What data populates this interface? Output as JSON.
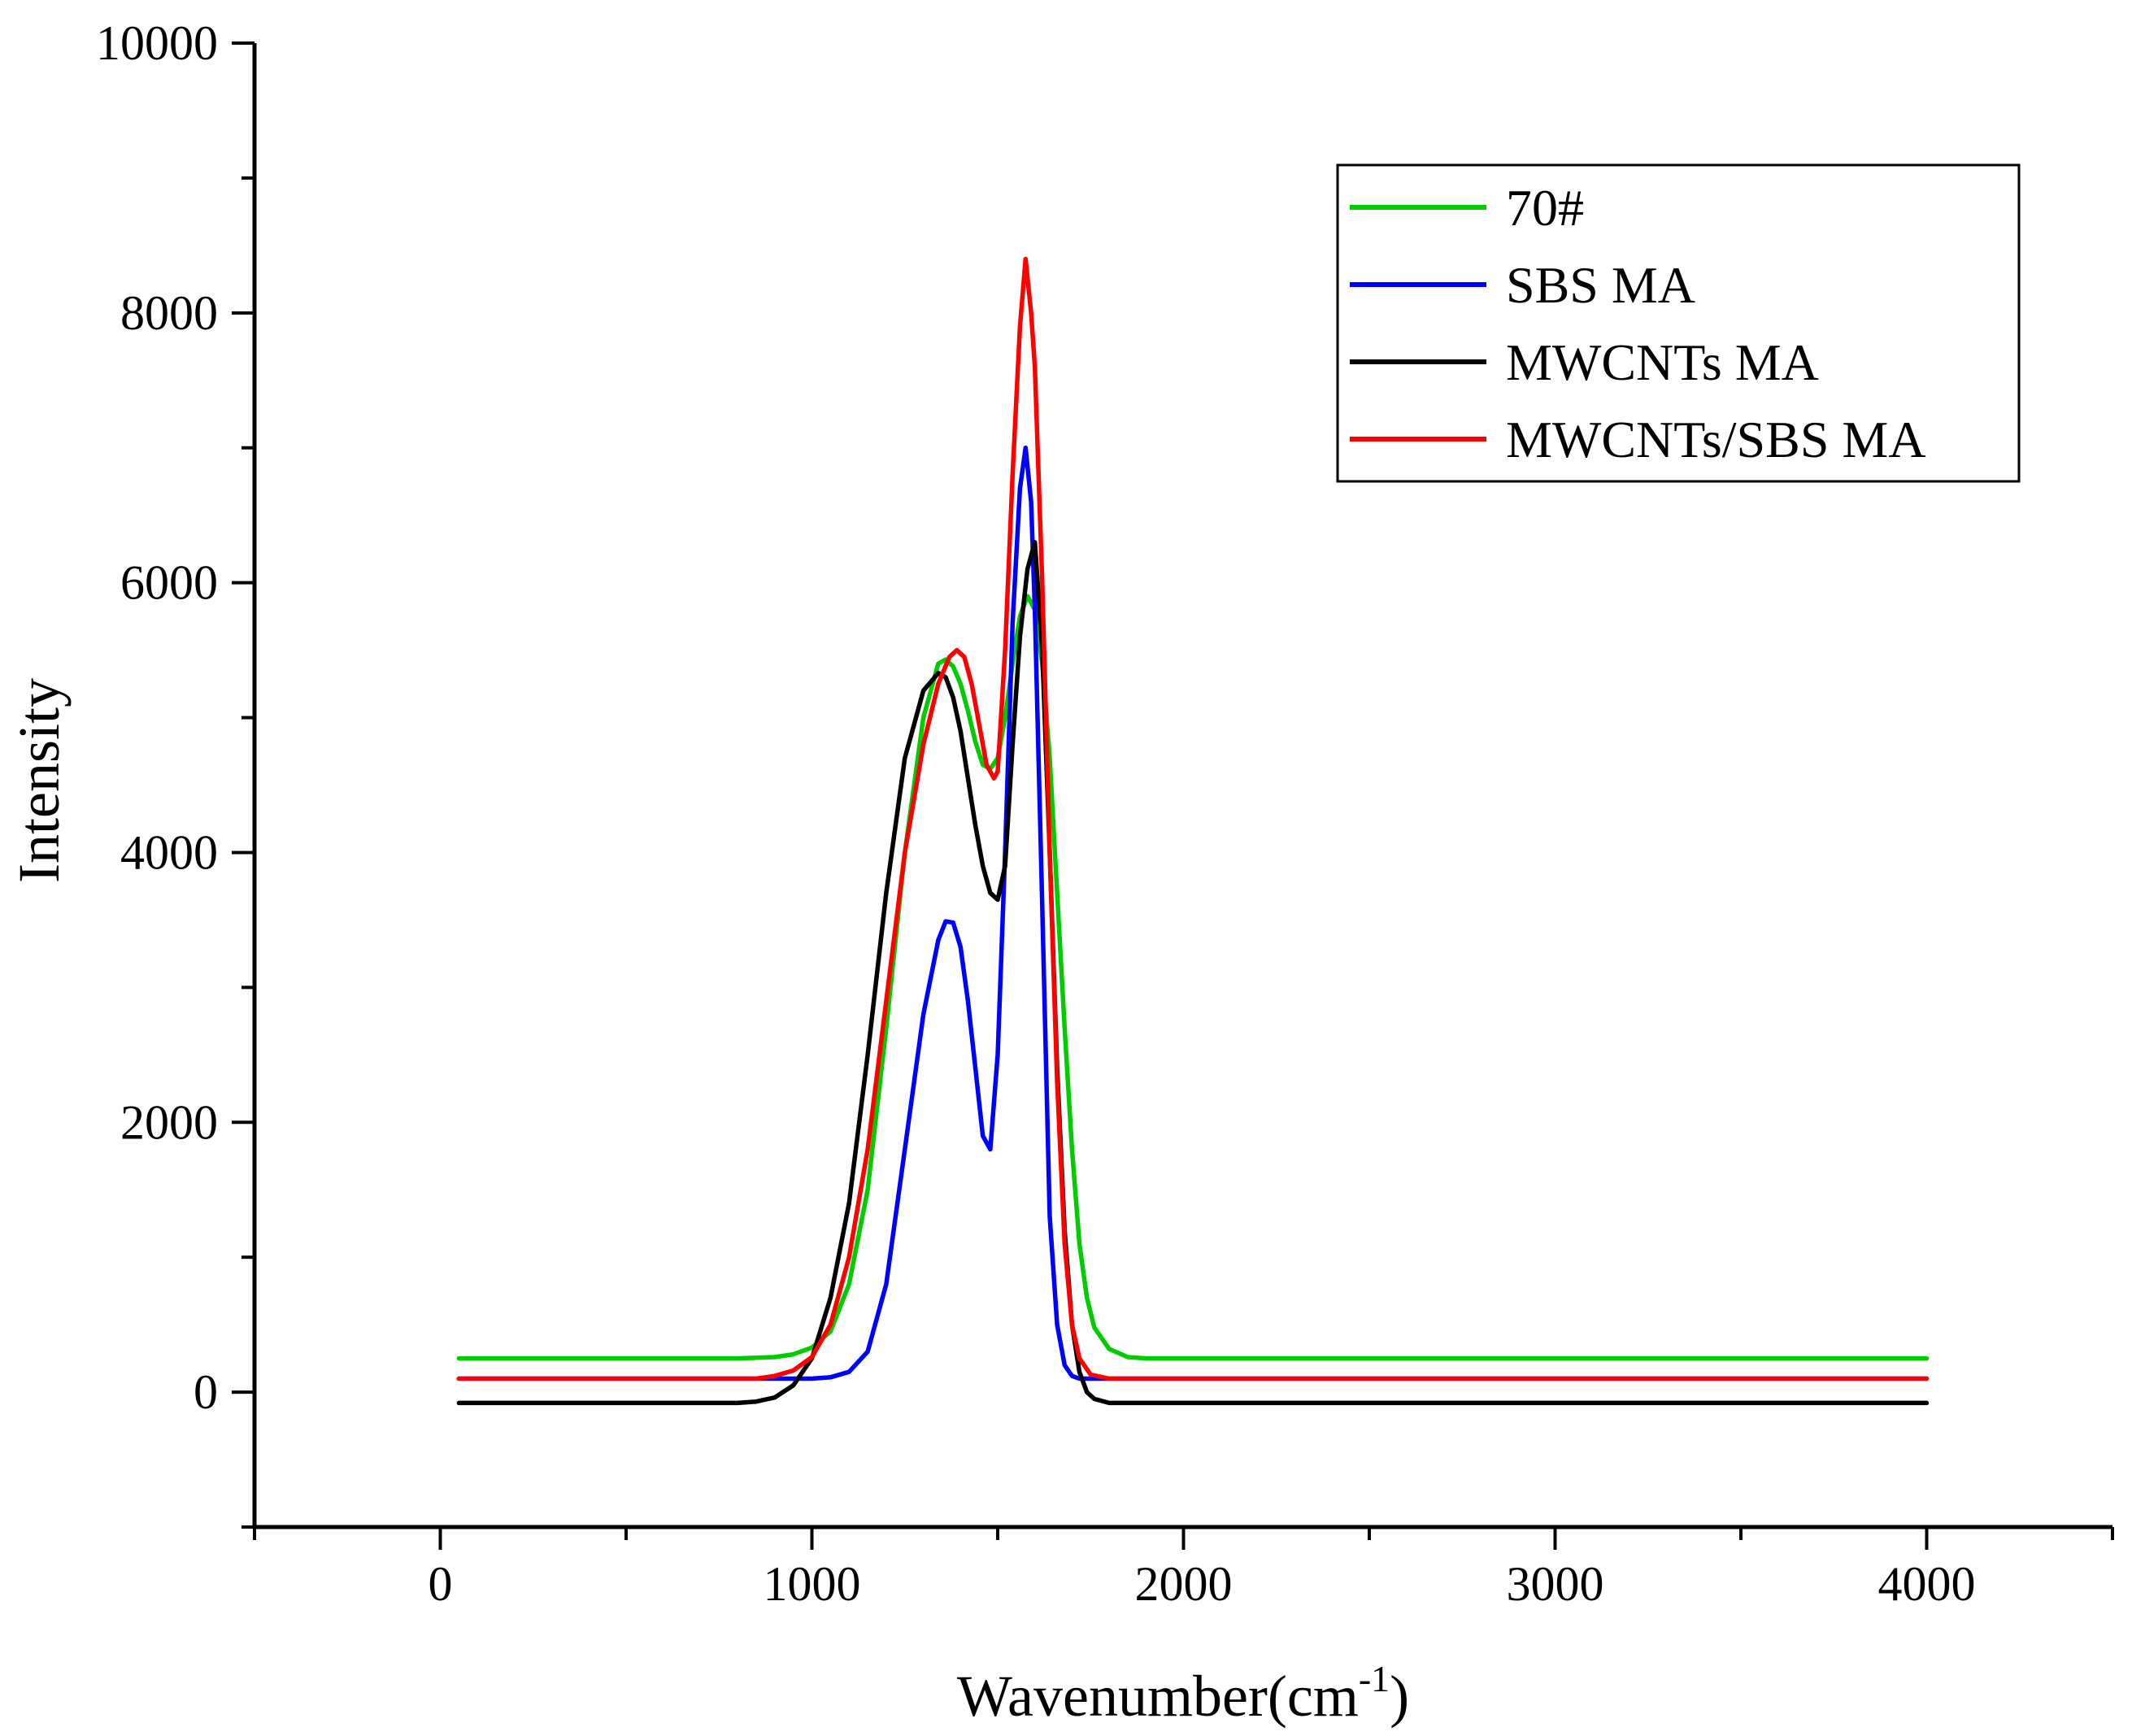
{
  "chart_data": {
    "type": "line",
    "title": "",
    "xlabel": "Wavenumber(cm",
    "xlabel_sup": "-1",
    "xlabel_close": ")",
    "ylabel": "Intensity",
    "xlim": [
      -500,
      4500
    ],
    "ylim": [
      -1000,
      10000
    ],
    "xticks": [
      0,
      1000,
      2000,
      3000,
      4000
    ],
    "xtick_labels": [
      "0",
      "1000",
      "2000",
      "3000",
      "4000"
    ],
    "xminor": [
      -500,
      500,
      1500,
      2500,
      3500,
      4500
    ],
    "yticks": [
      0,
      2000,
      4000,
      6000,
      8000,
      10000
    ],
    "ytick_labels": [
      "0",
      "2000",
      "4000",
      "6000",
      "8000",
      "10000"
    ],
    "yminor": [
      -1000,
      1000,
      3000,
      5000,
      7000,
      9000
    ],
    "grid": false,
    "legend_position": "top-right",
    "series": [
      {
        "name": "70#",
        "color": "#00cc00",
        "x": [
          50,
          800,
          900,
          950,
          1000,
          1050,
          1100,
          1150,
          1200,
          1250,
          1300,
          1340,
          1360,
          1380,
          1400,
          1420,
          1440,
          1460,
          1480,
          1500,
          1520,
          1540,
          1560,
          1580,
          1600,
          1620,
          1640,
          1660,
          1680,
          1700,
          1720,
          1740,
          1760,
          1800,
          1850,
          1900,
          4000
        ],
        "values": [
          250,
          250,
          260,
          280,
          330,
          450,
          800,
          1500,
          2700,
          4000,
          5000,
          5400,
          5430,
          5380,
          5250,
          5050,
          4820,
          4650,
          4620,
          4700,
          5000,
          5400,
          5750,
          5900,
          5800,
          5400,
          4700,
          3700,
          2700,
          1800,
          1100,
          700,
          480,
          320,
          260,
          250,
          250
        ]
      },
      {
        "name": "SBS MA",
        "color": "#0000ff",
        "x": [
          50,
          1000,
          1050,
          1100,
          1150,
          1200,
          1250,
          1300,
          1340,
          1360,
          1380,
          1400,
          1420,
          1440,
          1460,
          1480,
          1500,
          1520,
          1540,
          1560,
          1575,
          1590,
          1600,
          1620,
          1640,
          1660,
          1680,
          1700,
          1720,
          1750,
          1800,
          4000
        ],
        "values": [
          100,
          100,
          110,
          150,
          300,
          800,
          1800,
          2800,
          3350,
          3490,
          3480,
          3300,
          2900,
          2400,
          1900,
          1800,
          2500,
          4000,
          5700,
          6700,
          7000,
          6600,
          5800,
          3600,
          1300,
          500,
          200,
          120,
          100,
          100,
          100,
          100
        ]
      },
      {
        "name": "MWCNTs MA",
        "color": "#000000",
        "x": [
          50,
          800,
          850,
          900,
          950,
          1000,
          1050,
          1100,
          1150,
          1200,
          1250,
          1300,
          1340,
          1360,
          1380,
          1400,
          1420,
          1440,
          1460,
          1480,
          1500,
          1520,
          1540,
          1560,
          1580,
          1600,
          1620,
          1640,
          1660,
          1680,
          1700,
          1720,
          1740,
          1760,
          1800,
          1900,
          4000
        ],
        "values": [
          -80,
          -80,
          -70,
          -40,
          50,
          250,
          700,
          1400,
          2500,
          3700,
          4700,
          5200,
          5330,
          5300,
          5150,
          4900,
          4550,
          4200,
          3900,
          3700,
          3650,
          3900,
          4800,
          5600,
          6100,
          6300,
          5500,
          4000,
          2400,
          1200,
          500,
          150,
          0,
          -50,
          -80,
          -80,
          -80
        ]
      },
      {
        "name": "MWCNTs/SBS MA",
        "color": "#ff0000",
        "x": [
          50,
          850,
          900,
          950,
          1000,
          1050,
          1100,
          1150,
          1200,
          1250,
          1300,
          1340,
          1370,
          1390,
          1410,
          1430,
          1450,
          1470,
          1490,
          1500,
          1520,
          1540,
          1560,
          1575,
          1590,
          1600,
          1620,
          1640,
          1660,
          1680,
          1700,
          1720,
          1750,
          1800,
          1900,
          4000
        ],
        "values": [
          100,
          100,
          120,
          160,
          260,
          500,
          1000,
          1800,
          2900,
          4000,
          4800,
          5250,
          5450,
          5500,
          5450,
          5250,
          4950,
          4650,
          4550,
          4600,
          5500,
          6800,
          7900,
          8400,
          8000,
          7600,
          6000,
          4000,
          2300,
          1100,
          500,
          250,
          130,
          100,
          100,
          100
        ]
      }
    ]
  }
}
